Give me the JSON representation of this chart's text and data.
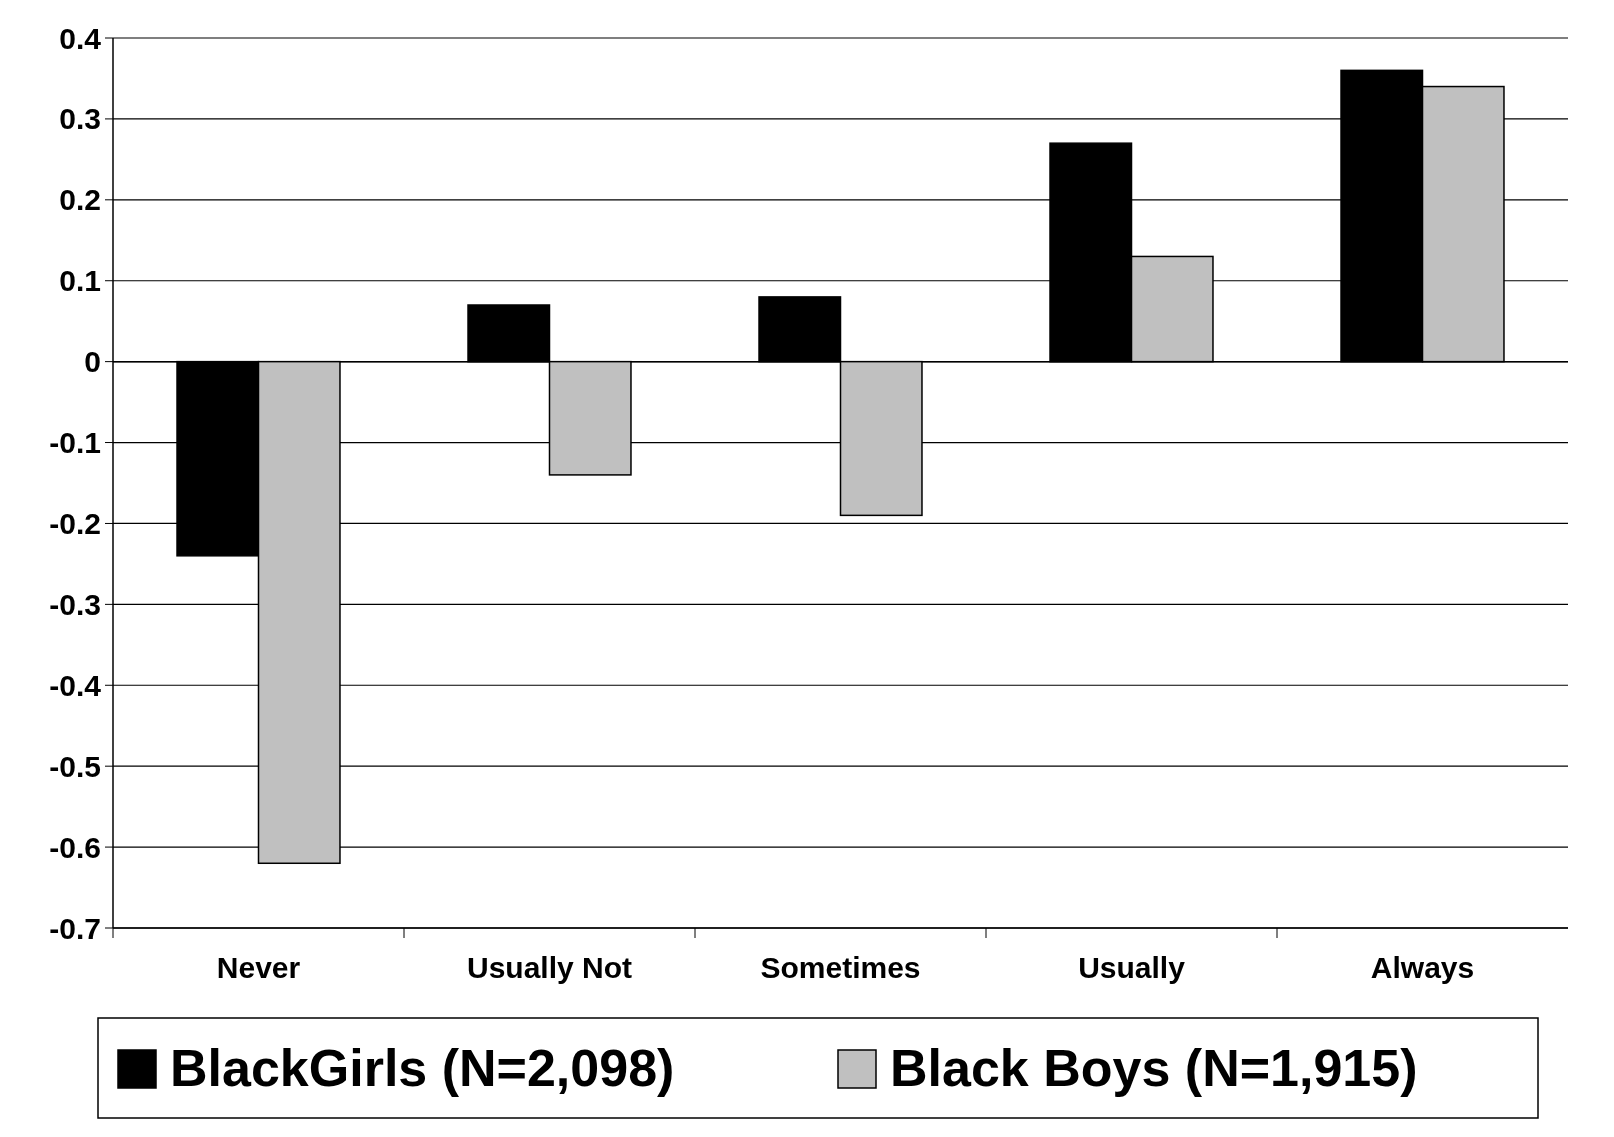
{
  "chart_data": {
    "type": "bar",
    "categories": [
      "Never",
      "Usually Not",
      "Sometimes",
      "Usually",
      "Always"
    ],
    "series": [
      {
        "name": "BlackGirls (N=2,098)",
        "color": "#000000",
        "values": [
          -0.24,
          0.07,
          0.08,
          0.27,
          0.36
        ]
      },
      {
        "name": "Black Boys (N=1,915)",
        "color": "#c0c0c0",
        "values": [
          -0.62,
          -0.14,
          -0.19,
          0.13,
          0.34
        ]
      }
    ],
    "ylim": [
      -0.7,
      0.4
    ],
    "yticks": [
      -0.7,
      -0.6,
      -0.5,
      -0.4,
      -0.3,
      -0.2,
      -0.1,
      0,
      0.1,
      0.2,
      0.3,
      0.4
    ],
    "grid": "y",
    "legend": "bottom"
  }
}
